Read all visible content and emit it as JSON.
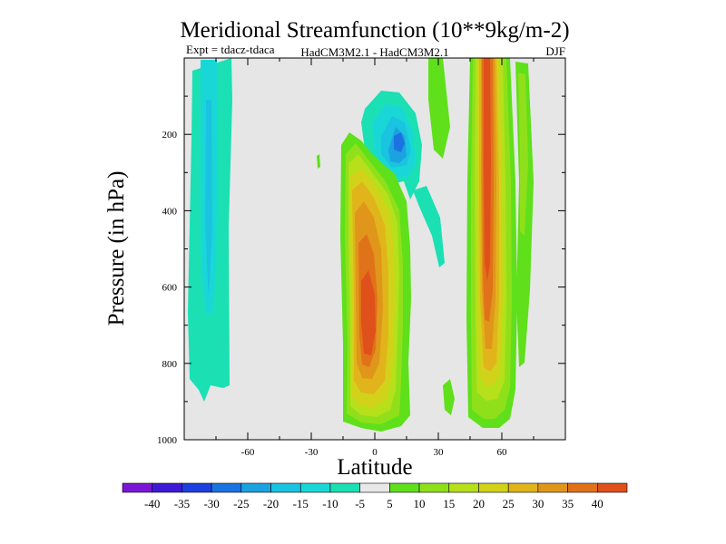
{
  "chart_data": {
    "type": "heatmap",
    "title": "Meridional Streamfunction (10**9kg/m-2)",
    "subtitle_left": "Expt = tdacz-tdaca",
    "subtitle_center": "HadCM3M2.1 - HadCM3M2.1",
    "subtitle_right": "DJF",
    "xlabel": "Latitude",
    "ylabel": "Pressure (in hPa)",
    "xlim": [
      -90,
      90
    ],
    "ylim": [
      1000,
      0
    ],
    "x_ticks": [
      -60,
      -30,
      0,
      30,
      60
    ],
    "x_tick_labels": [
      "-60",
      "-30",
      "0",
      "30",
      "60"
    ],
    "y_ticks": [
      200,
      400,
      600,
      800,
      1000
    ],
    "y_tick_labels": [
      "200",
      "400",
      "600",
      "800",
      "1000"
    ],
    "background_color": "#e6e6e6",
    "colorbar": {
      "colors": [
        "#7a17d6",
        "#3f1ad6",
        "#1e3fe0",
        "#1a73e0",
        "#1aa3e0",
        "#1ac3e0",
        "#1ad7d7",
        "#1ae0b4",
        "#e8e8e8",
        "#5fe01a",
        "#8fe01a",
        "#b5e01a",
        "#d2d21a",
        "#e0b41a",
        "#e0961a",
        "#e0731a",
        "#e0501a"
      ],
      "labels": [
        "-40",
        "-35",
        "-30",
        "-25",
        "-20",
        "-15",
        "-10",
        "-5",
        "5",
        "10",
        "15",
        "20",
        "25",
        "30",
        "35",
        "40"
      ]
    },
    "features": [
      {
        "name": "sh-weak-negative-cell",
        "center_lat": -78,
        "center_p": 400,
        "lat_halfwidth": 8,
        "p_halfwidth": 420,
        "value": -8
      },
      {
        "name": "tropical-positive-cell",
        "center_lat": -3,
        "center_p": 680,
        "lat_halfwidth": 12,
        "p_halfwidth": 300,
        "value": 40
      },
      {
        "name": "upper-negative-cell",
        "center_lat": 10,
        "center_p": 210,
        "lat_halfwidth": 9,
        "p_halfwidth": 110,
        "value": -30
      },
      {
        "name": "midlat-positive-column",
        "center_lat": 52,
        "center_p": 500,
        "lat_halfwidth": 4,
        "p_halfwidth": 480,
        "value": 40
      }
    ]
  }
}
